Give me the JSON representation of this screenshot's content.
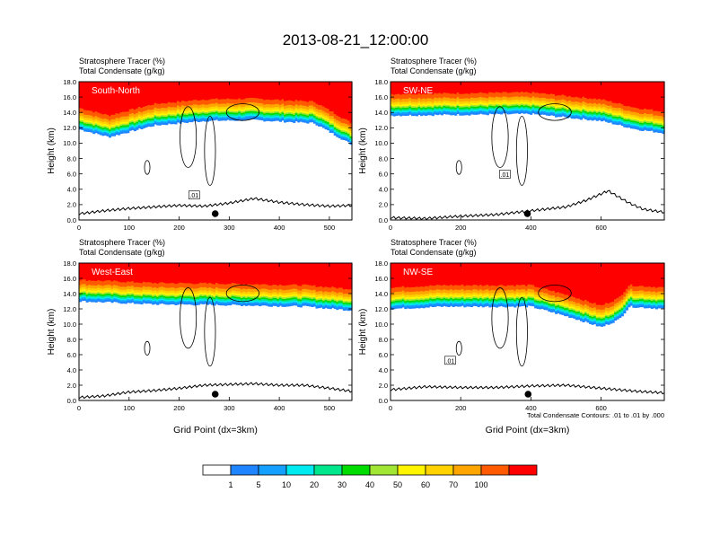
{
  "title": "2013-08-21_12:00:00",
  "colors": {
    "scale": [
      "#ffffff",
      "#1e84ff",
      "#14a0ff",
      "#00ebf0",
      "#00e68c",
      "#00dc00",
      "#a0e632",
      "#fff500",
      "#ffd200",
      "#ffa500",
      "#ff5a00",
      "#ff0000"
    ],
    "contour": "#000000",
    "terrain": "#000000"
  },
  "colorbar": {
    "labels": [
      "1",
      "5",
      "10",
      "20",
      "30",
      "40",
      "50",
      "60",
      "70",
      "100"
    ]
  },
  "chart_data": [
    {
      "type": "heatmap",
      "panel": "South-North",
      "title_left": "Stratosphere Tracer   (%)",
      "title_left2": "Total Condensate   (g/kg)",
      "ylabel": "Height (km)",
      "xlabel": "",
      "xlim": [
        0,
        545
      ],
      "ylim": [
        0,
        18
      ],
      "xticks": [
        0,
        100,
        200,
        300,
        400,
        500
      ],
      "yticks": [
        "0.0",
        "2.0",
        "4.0",
        "6.0",
        "8.0",
        "10.0",
        "12.0",
        "14.0",
        "16.0",
        "18.0"
      ],
      "tropopause_base_km": [
        [
          0,
          11.8
        ],
        [
          60,
          10.8
        ],
        [
          150,
          12.3
        ],
        [
          250,
          12.9
        ],
        [
          350,
          13.0
        ],
        [
          470,
          12.6
        ],
        [
          545,
          9.8
        ]
      ],
      "terrain_km": [
        [
          0,
          0.8
        ],
        [
          50,
          1.2
        ],
        [
          100,
          1.5
        ],
        [
          150,
          1.7
        ],
        [
          200,
          1.9
        ],
        [
          250,
          1.8
        ],
        [
          300,
          2.2
        ],
        [
          350,
          2.8
        ],
        [
          400,
          2.3
        ],
        [
          450,
          2.0
        ],
        [
          500,
          1.8
        ],
        [
          545,
          1.9
        ]
      ],
      "marker_x": 272,
      "contour_label": ".01",
      "contour_label_pos": [
        230,
        3.2
      ]
    },
    {
      "type": "heatmap",
      "panel": "SW-NE",
      "title_left": "Stratosphere Tracer   (%)",
      "title_left2": "Total Condensate   (g/kg)",
      "ylabel": "Height (km)",
      "xlabel": "",
      "xlim": [
        0,
        780
      ],
      "ylim": [
        0,
        18
      ],
      "xticks": [
        0,
        200,
        400,
        600
      ],
      "yticks": [
        "0.0",
        "2.0",
        "4.0",
        "6.0",
        "8.0",
        "10.0",
        "12.0",
        "14.0",
        "16.0",
        "18.0"
      ],
      "tropopause_base_km": [
        [
          0,
          13.6
        ],
        [
          200,
          13.7
        ],
        [
          400,
          13.8
        ],
        [
          600,
          12.9
        ],
        [
          700,
          11.8
        ],
        [
          780,
          11.3
        ]
      ],
      "terrain_km": [
        [
          0,
          0.3
        ],
        [
          100,
          0.2
        ],
        [
          200,
          0.5
        ],
        [
          300,
          0.7
        ],
        [
          400,
          1.2
        ],
        [
          500,
          1.7
        ],
        [
          560,
          2.6
        ],
        [
          620,
          3.8
        ],
        [
          680,
          2.2
        ],
        [
          720,
          1.4
        ],
        [
          780,
          1.0
        ]
      ],
      "marker_x": 390,
      "contour_label": ".01",
      "contour_label_pos": [
        326,
        5.9
      ]
    },
    {
      "type": "heatmap",
      "panel": "West-East",
      "title_left": "Stratosphere Tracer   (%)",
      "title_left2": "Total Condensate   (g/kg)",
      "ylabel": "Height (km)",
      "xlabel": "Grid Point (dx=3km)",
      "xlim": [
        0,
        545
      ],
      "ylim": [
        0,
        18
      ],
      "xticks": [
        0,
        100,
        200,
        300,
        400,
        500
      ],
      "yticks": [
        "0.0",
        "2.0",
        "4.0",
        "6.0",
        "8.0",
        "10.0",
        "12.0",
        "14.0",
        "16.0",
        "18.0"
      ],
      "tropopause_base_km": [
        [
          0,
          13.0
        ],
        [
          150,
          12.6
        ],
        [
          300,
          12.5
        ],
        [
          450,
          12.3
        ],
        [
          545,
          11.8
        ]
      ],
      "terrain_km": [
        [
          0,
          0.4
        ],
        [
          50,
          0.6
        ],
        [
          100,
          1.1
        ],
        [
          150,
          1.3
        ],
        [
          200,
          1.6
        ],
        [
          250,
          2.0
        ],
        [
          300,
          2.1
        ],
        [
          350,
          2.2
        ],
        [
          400,
          2.0
        ],
        [
          450,
          2.0
        ],
        [
          500,
          1.6
        ],
        [
          545,
          1.2
        ]
      ],
      "marker_x": 272,
      "contour_label": "",
      "contour_label_pos": [
        0,
        0
      ]
    },
    {
      "type": "heatmap",
      "panel": "NW-SE",
      "title_left": "Stratosphere Tracer   (%)",
      "title_left2": "Total Condensate   (g/kg)",
      "ylabel": "Height (km)",
      "xlabel": "Grid Point (dx=3km)",
      "xlim": [
        0,
        780
      ],
      "ylim": [
        0,
        18
      ],
      "xticks": [
        0,
        200,
        400,
        600
      ],
      "yticks": [
        "0.0",
        "2.0",
        "4.0",
        "6.0",
        "8.0",
        "10.0",
        "12.0",
        "14.0",
        "16.0",
        "18.0"
      ],
      "tropopause_base_km": [
        [
          0,
          12.0
        ],
        [
          150,
          12.3
        ],
        [
          400,
          12.3
        ],
        [
          520,
          10.8
        ],
        [
          600,
          9.6
        ],
        [
          650,
          10.6
        ],
        [
          680,
          12.3
        ],
        [
          780,
          12.0
        ]
      ],
      "terrain_km": [
        [
          0,
          1.4
        ],
        [
          100,
          1.8
        ],
        [
          200,
          1.7
        ],
        [
          300,
          1.7
        ],
        [
          400,
          1.9
        ],
        [
          500,
          2.0
        ],
        [
          600,
          1.6
        ],
        [
          700,
          1.2
        ],
        [
          780,
          1.0
        ]
      ],
      "marker_x": 392,
      "contour_label": ".01",
      "contour_label_pos": [
        170,
        5.2
      ],
      "footnote": "Total Condensate Contours: .01 to .01 by .000"
    }
  ]
}
